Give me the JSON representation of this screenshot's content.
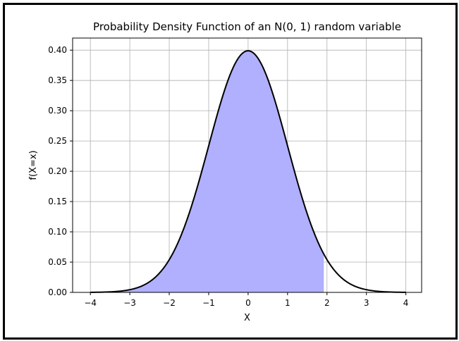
{
  "chart_data": {
    "type": "area",
    "title": "Probability Density Function of an N(0, 1) random variable",
    "xlabel": "X",
    "ylabel": "f(X=x)",
    "xlim": [
      -4.45,
      4.4
    ],
    "ylim": [
      0.0,
      0.42
    ],
    "xticks": [
      -4,
      -3,
      -2,
      -1,
      0,
      1,
      2,
      3,
      4
    ],
    "xtick_labels": [
      "−4",
      "−3",
      "−2",
      "−1",
      "0",
      "1",
      "2",
      "3",
      "4"
    ],
    "yticks": [
      0.0,
      0.05,
      0.1,
      0.15,
      0.2,
      0.25,
      0.3,
      0.35,
      0.4
    ],
    "ytick_labels": [
      "0.00",
      "0.05",
      "0.10",
      "0.15",
      "0.20",
      "0.25",
      "0.30",
      "0.35",
      "0.40"
    ],
    "grid": true,
    "series": [
      {
        "kind": "line",
        "color": "#000000",
        "x": [
          -4.0,
          -3.5,
          -3.0,
          -2.5,
          -2.0,
          -1.5,
          -1.0,
          -0.5,
          0.0,
          0.5,
          1.0,
          1.5,
          2.0,
          2.5,
          3.0,
          3.5,
          4.0
        ],
        "y": [
          0.0001,
          0.0009,
          0.0044,
          0.0175,
          0.054,
          0.1295,
          0.242,
          0.3521,
          0.3989,
          0.3521,
          0.242,
          0.1295,
          0.054,
          0.0175,
          0.0044,
          0.0009,
          0.0001
        ]
      },
      {
        "kind": "shaded_area",
        "color": "#b0b0ff",
        "x_range": [
          -4.0,
          1.92
        ]
      }
    ]
  }
}
